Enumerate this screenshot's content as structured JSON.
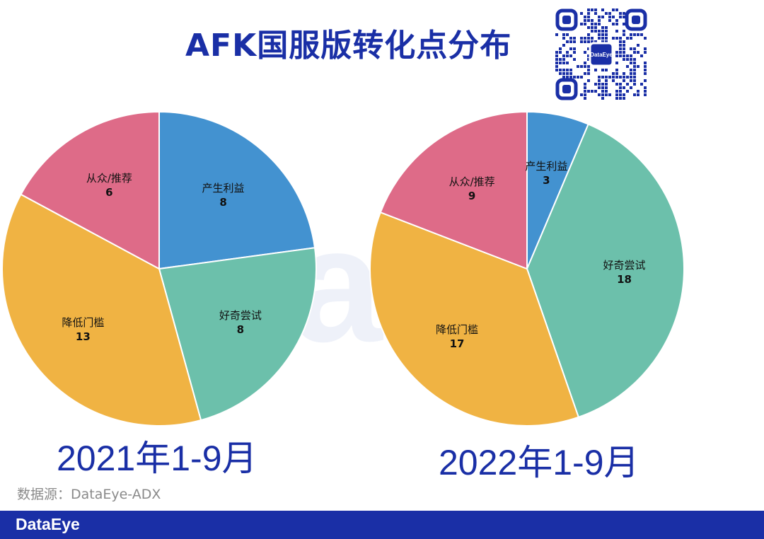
{
  "title": "AFK国服版转化点分布",
  "watermark": "DataEye",
  "qr_logo_text": "DataEye",
  "source": "数据源：DataEye-ADX",
  "footer_logo": "DataEye",
  "colors": {
    "产生利益": "#4392d0",
    "好奇尝试": "#6cc0ab",
    "降低门槛": "#f0b343",
    "从众/推荐": "#de6b88",
    "brand": "#1a2fa6"
  },
  "chart_data": [
    {
      "type": "pie",
      "title": "2021年1-9月",
      "start": "12 o'clock",
      "direction": "clockwise",
      "slices": [
        {
          "label": "产生利益",
          "value": 8
        },
        {
          "label": "好奇尝试",
          "value": 8
        },
        {
          "label": "降低门槛",
          "value": 13
        },
        {
          "label": "从众/推荐",
          "value": 6
        }
      ]
    },
    {
      "type": "pie",
      "title": "2022年1-9月",
      "start": "12 o'clock",
      "direction": "clockwise",
      "slices": [
        {
          "label": "产生利益",
          "value": 3
        },
        {
          "label": "好奇尝试",
          "value": 18
        },
        {
          "label": "降低门槛",
          "value": 17
        },
        {
          "label": "从众/推荐",
          "value": 9
        }
      ]
    }
  ]
}
